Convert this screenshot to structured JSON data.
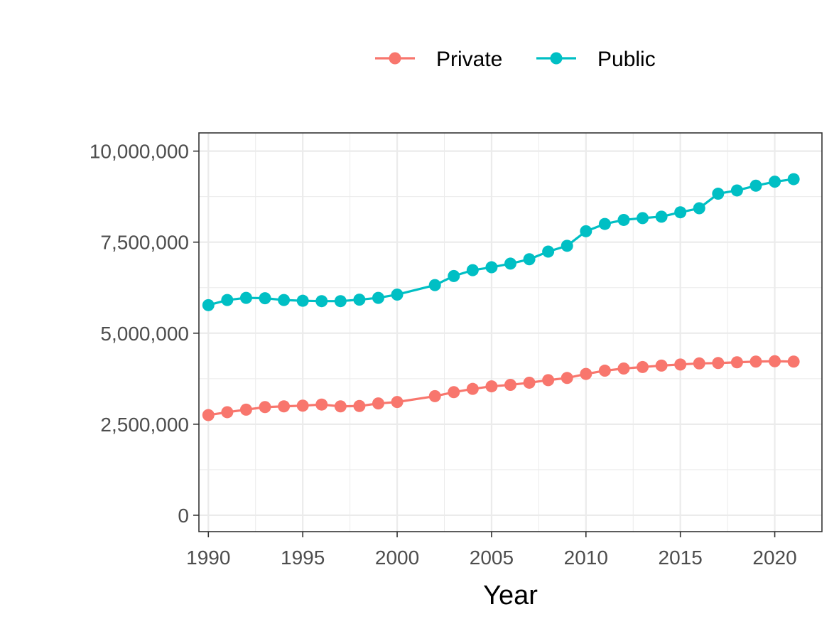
{
  "chart_data": {
    "type": "line",
    "title": "",
    "xlabel": "Year",
    "ylabel": "",
    "xlim": [
      1989.5,
      2022.5
    ],
    "ylim": [
      -450000,
      10500000
    ],
    "x_ticks": [
      1990,
      1995,
      2000,
      2005,
      2010,
      2015,
      2020
    ],
    "y_ticks": [
      0,
      2500000,
      5000000,
      7500000,
      10000000
    ],
    "y_tick_labels": [
      "0",
      "2,500,000",
      "5,000,000",
      "7,500,000",
      "10,000,000"
    ],
    "grid": true,
    "legend_position": "top",
    "x": [
      1990,
      1991,
      1992,
      1993,
      1994,
      1995,
      1996,
      1997,
      1998,
      1999,
      2000,
      2002,
      2003,
      2004,
      2005,
      2006,
      2007,
      2008,
      2009,
      2010,
      2011,
      2012,
      2013,
      2014,
      2015,
      2016,
      2017,
      2018,
      2019,
      2020,
      2021
    ],
    "series": [
      {
        "name": "Private",
        "color": "#F8766D",
        "values": [
          2750000,
          2830000,
          2900000,
          2970000,
          2990000,
          3010000,
          3040000,
          2990000,
          3000000,
          3070000,
          3110000,
          3270000,
          3380000,
          3470000,
          3540000,
          3580000,
          3640000,
          3710000,
          3770000,
          3880000,
          3970000,
          4030000,
          4070000,
          4110000,
          4140000,
          4170000,
          4180000,
          4200000,
          4220000,
          4230000,
          4220000
        ]
      },
      {
        "name": "Public",
        "color": "#00BFC4",
        "values": [
          5770000,
          5910000,
          5970000,
          5960000,
          5910000,
          5890000,
          5880000,
          5880000,
          5920000,
          5970000,
          6060000,
          6320000,
          6570000,
          6730000,
          6810000,
          6910000,
          7030000,
          7240000,
          7400000,
          7800000,
          8000000,
          8110000,
          8160000,
          8200000,
          8320000,
          8430000,
          8830000,
          8920000,
          9050000,
          9160000,
          9230000
        ]
      }
    ]
  }
}
